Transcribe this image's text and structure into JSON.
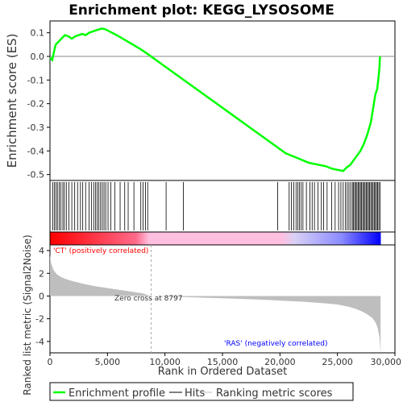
{
  "chart_data": [
    {
      "panel": "enrichment-profile",
      "type": "line",
      "title": "Enrichment plot: KEGG_LYSOSOME",
      "ylabel": "Enrichment score (ES)",
      "xlim": [
        0,
        30000
      ],
      "ylim": [
        -0.525,
        0.15
      ],
      "yticks": [
        0.1,
        0.0,
        -0.1,
        -0.2,
        -0.3,
        -0.4,
        -0.5
      ],
      "ytick_labels": [
        "0.1",
        "0.0",
        "-0.1",
        "-0.2",
        "-0.3",
        "-0.4",
        "-0.5"
      ],
      "grid": false,
      "zero_line": true,
      "series": [
        {
          "name": "Enrichment profile",
          "color": "#00ff00",
          "x": [
            0,
            200,
            350,
            500,
            700,
            900,
            1100,
            1300,
            1600,
            1900,
            2200,
            2500,
            2800,
            3100,
            3400,
            3700,
            4000,
            4300,
            4500,
            4800,
            5200,
            5800,
            6500,
            7200,
            7900,
            8500,
            9500,
            10500,
            11500,
            12500,
            13500,
            14500,
            15500,
            16500,
            17500,
            18500,
            19500,
            20500,
            21000,
            21500,
            22000,
            22500,
            23000,
            23500,
            24000,
            24500,
            25000,
            25500,
            25800,
            26100,
            26400,
            26700,
            27000,
            27300,
            27600,
            27900,
            28100,
            28300,
            28450,
            28550,
            28650,
            28700
          ],
          "y": [
            -0.005,
            -0.015,
            0.02,
            0.05,
            0.06,
            0.07,
            0.08,
            0.09,
            0.085,
            0.075,
            0.085,
            0.09,
            0.095,
            0.09,
            0.1,
            0.105,
            0.11,
            0.115,
            0.118,
            0.115,
            0.105,
            0.09,
            0.07,
            0.05,
            0.03,
            0.01,
            -0.025,
            -0.06,
            -0.095,
            -0.13,
            -0.165,
            -0.2,
            -0.235,
            -0.27,
            -0.305,
            -0.34,
            -0.375,
            -0.41,
            -0.42,
            -0.43,
            -0.44,
            -0.45,
            -0.455,
            -0.46,
            -0.465,
            -0.475,
            -0.48,
            -0.485,
            -0.47,
            -0.46,
            -0.44,
            -0.42,
            -0.4,
            -0.37,
            -0.33,
            -0.28,
            -0.22,
            -0.16,
            -0.14,
            -0.1,
            -0.05,
            0.0
          ]
        }
      ]
    },
    {
      "panel": "hits",
      "type": "scatter",
      "legend_name": "Hits",
      "xlim": [
        0,
        30000
      ],
      "hit_positions": [
        250,
        380,
        520,
        650,
        800,
        950,
        1120,
        1250,
        1420,
        1650,
        1900,
        2150,
        2400,
        2650,
        2850,
        3100,
        3400,
        3600,
        3800,
        3950,
        4100,
        4250,
        4400,
        4550,
        4700,
        4850,
        5050,
        5300,
        5650,
        6100,
        6500,
        6800,
        7300,
        7900,
        8100,
        8300,
        8500,
        10100,
        11600,
        19800,
        20800,
        21000,
        21200,
        21400,
        21550,
        21700,
        21850,
        22000,
        22300,
        22600,
        22800,
        23000,
        23300,
        23600,
        23800,
        24100,
        24500,
        24800,
        25100,
        25300,
        25500,
        25700,
        25850,
        26000,
        26150,
        26300,
        26400,
        26500,
        26600,
        26700,
        26800,
        26900,
        27000,
        27100,
        27200,
        27300,
        27400,
        27500,
        27600,
        27700,
        27800,
        27900,
        28000,
        28100,
        28200,
        28300,
        28400,
        28500,
        28600,
        28700
      ]
    },
    {
      "panel": "ranked-list-metric",
      "type": "area",
      "ylabel": "Ranked list metric (Signal2Noise)",
      "xlabel": "Rank in Ordered Dataset",
      "xlim": [
        0,
        30000
      ],
      "ylim": [
        -5,
        4.5
      ],
      "xticks": [
        0,
        5000,
        10000,
        15000,
        20000,
        25000,
        30000
      ],
      "xtick_labels": [
        "0",
        "5,000",
        "10,000",
        "15,000",
        "20,000",
        "25,000",
        "30,000"
      ],
      "yticks": [
        4,
        2,
        0,
        -2,
        -4
      ],
      "ytick_labels": [
        "4",
        "2",
        "0",
        "-2",
        "-4"
      ],
      "color": "#bebebe",
      "x": [
        0,
        100,
        300,
        600,
        1000,
        1500,
        2000,
        3000,
        4000,
        5000,
        6000,
        7000,
        8000,
        8797,
        10000,
        12000,
        15000,
        18000,
        20000,
        22000,
        24000,
        25000,
        26000,
        26500,
        27000,
        27500,
        28000,
        28300,
        28500,
        28650,
        28750
      ],
      "y": [
        3.6,
        2.9,
        2.3,
        1.9,
        1.65,
        1.45,
        1.3,
        1.05,
        0.85,
        0.7,
        0.55,
        0.4,
        0.25,
        0.0,
        -0.05,
        -0.1,
        -0.2,
        -0.3,
        -0.4,
        -0.5,
        -0.65,
        -0.75,
        -0.95,
        -1.1,
        -1.3,
        -1.55,
        -1.9,
        -2.3,
        -2.8,
        -3.6,
        -5.0
      ],
      "zero_cross_rank": 8797,
      "annotations": {
        "positive": "'CT' (positively correlated)",
        "zero_cross": "Zero cross at 8797",
        "negative": "'RAS' (negatively correlated)"
      },
      "positive_color": "#ff0000",
      "negative_color": "#0000ff"
    }
  ],
  "legend": {
    "items": [
      {
        "label": "Enrichment profile",
        "color": "#00ff00"
      },
      {
        "label": "Hits",
        "color": "#000000"
      },
      {
        "label": "Ranking metric scores",
        "color": "#bebebe"
      }
    ]
  }
}
